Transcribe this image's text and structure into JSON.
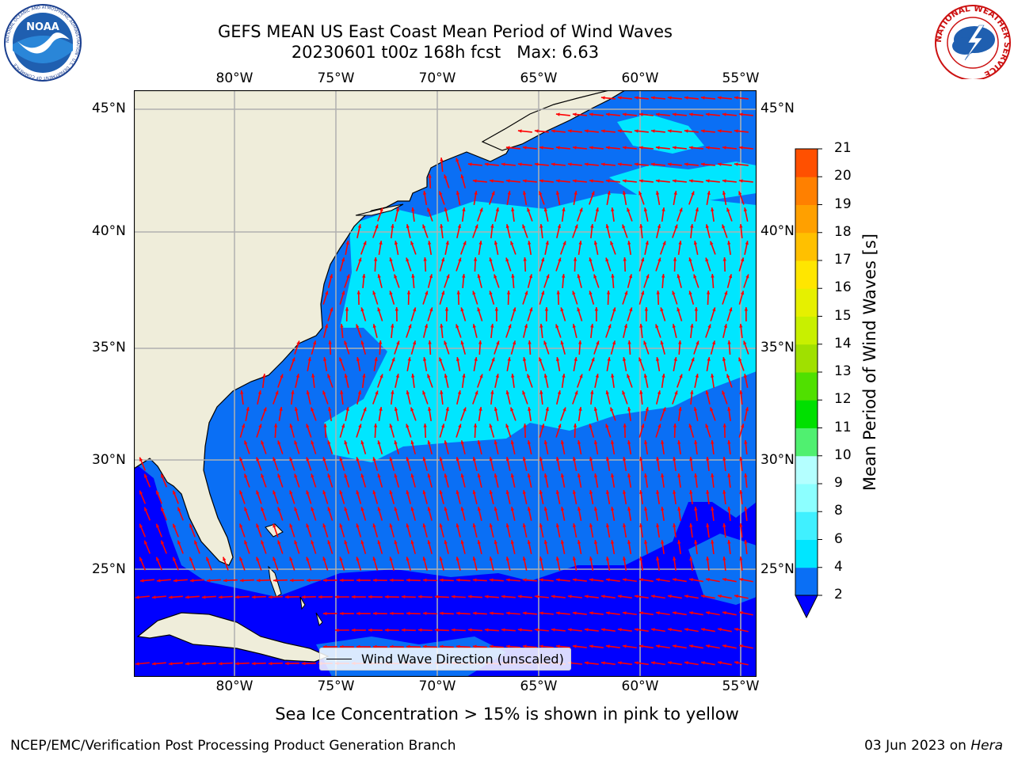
{
  "header": {
    "title": "GEFS MEAN US East Coast Mean Period of Wind Waves",
    "subtitle": "20230601 t00z 168h fcst   Max: 6.63"
  },
  "logos": {
    "noaa": {
      "text": "NOAA",
      "ring_text": "NATIONAL OCEANIC AND ATMOSPHERIC ADMINISTRATION · U.S. DEPARTMENT OF COMMERCE"
    },
    "nws": {
      "ring_text": "NATIONAL WEATHER SERVICE"
    }
  },
  "map": {
    "lon_labels": [
      "80°W",
      "75°W",
      "70°W",
      "65°W",
      "60°W",
      "55°W"
    ],
    "lat_labels": [
      "45°N",
      "40°N",
      "35°N",
      "30°N",
      "25°N"
    ],
    "legend_label": "Wind Wave Direction (unscaled)",
    "colors": {
      "land": "#efedda",
      "coast": "#000000",
      "grid": "#b0b0b0",
      "arrows": "#ff0000"
    }
  },
  "colorbar": {
    "label": "Mean Period of Wind Waves [s]",
    "ticks": [
      "2",
      "4",
      "6",
      "8",
      "9",
      "10",
      "11",
      "12",
      "13",
      "14",
      "15",
      "16",
      "17",
      "18",
      "19",
      "20",
      "21"
    ],
    "colors": [
      "#0a6ff5",
      "#00e6ff",
      "#40f0ff",
      "#8cffff",
      "#b4ffff",
      "#50f070",
      "#00e000",
      "#50e000",
      "#a0e000",
      "#c8f000",
      "#e6f000",
      "#ffe600",
      "#ffc000",
      "#ffa000",
      "#ff8000",
      "#ff5000",
      "#ff1e00",
      "#ff0000"
    ],
    "under_color": "#0000ff"
  },
  "footer": {
    "note": "Sea Ice Concentration > 15% is shown in pink to yellow",
    "credit_left": "NCEP/EMC/Verification Post Processing Product Generation Branch",
    "date": "03 Jun 2023 on",
    "machine": "Hera"
  }
}
